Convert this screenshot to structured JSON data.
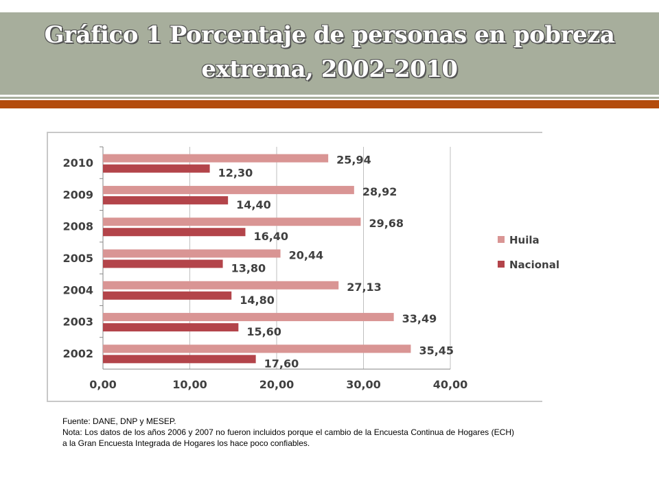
{
  "slide": {
    "title_line1": "Gráfico 1 Porcentaje de personas en pobreza",
    "title_line2": "extrema, 2002-2010",
    "source": "Fuente: DANE, DNP y MESEP.",
    "note": "Nota: Los datos de los años 2006 y 2007 no fueron incluidos porque el cambio de la Encuesta Continua de Hogares (ECH) a la Gran Encuesta Integrada de Hogares los hace poco confiables."
  },
  "chart_data": {
    "type": "bar",
    "orientation": "horizontal",
    "title": "",
    "categories": [
      "2010",
      "2009",
      "2008",
      "2005",
      "2004",
      "2003",
      "2002"
    ],
    "series": [
      {
        "name": "Huila",
        "color": "#d99594",
        "values": [
          25.94,
          28.92,
          29.68,
          20.44,
          27.13,
          33.49,
          35.45
        ],
        "labels": [
          "25,94",
          "28,92",
          "29,68",
          "20,44",
          "27,13",
          "33,49",
          "35,45"
        ]
      },
      {
        "name": "Nacional",
        "color": "#b3444a",
        "values": [
          12.3,
          14.4,
          16.4,
          13.8,
          14.8,
          15.6,
          17.6
        ],
        "labels": [
          "12,30",
          "14,40",
          "16,40",
          "13,80",
          "14,80",
          "15,60",
          "17,60"
        ]
      }
    ],
    "xlim": [
      0,
      40
    ],
    "xticks": [
      0,
      10,
      20,
      30,
      40
    ],
    "xtick_labels": [
      "0,00",
      "10,00",
      "20,00",
      "30,00",
      "40,00"
    ],
    "grid": "vertical",
    "legend": "right"
  }
}
